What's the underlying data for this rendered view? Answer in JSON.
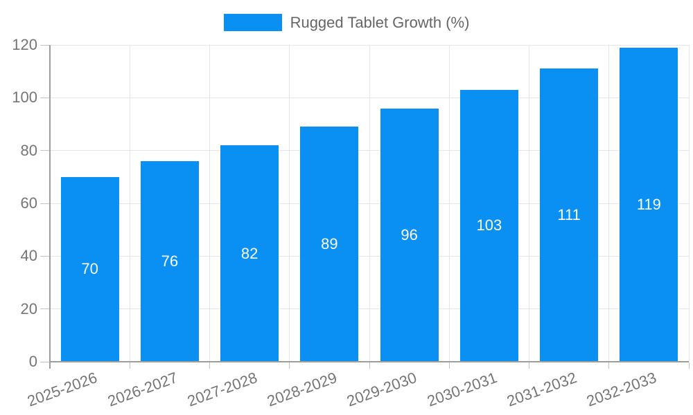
{
  "chart_data": {
    "type": "bar",
    "title": "",
    "legend": {
      "label": "Rugged Tablet Growth (%)",
      "position": "top"
    },
    "categories": [
      "2025-2026",
      "2026-2027",
      "2027-2028",
      "2028-2029",
      "2029-2030",
      "2030-2031",
      "2031-2032",
      "2032-2033"
    ],
    "series": [
      {
        "name": "Rugged Tablet Growth (%)",
        "values": [
          70,
          76,
          82,
          89,
          96,
          103,
          111,
          119
        ]
      }
    ],
    "values": [
      70,
      76,
      82,
      89,
      96,
      103,
      111,
      119
    ],
    "xlabel": "",
    "ylabel": "",
    "ylim": [
      0,
      120
    ],
    "yticks": [
      0,
      20,
      40,
      60,
      80,
      100,
      120
    ],
    "grid": "both",
    "x_label_rotation_deg": -20,
    "colors": {
      "bar": "#0a90f2",
      "value_label": "#ffffff",
      "axis_text": "#757575",
      "legend_text": "#666666",
      "gridline": "#e6e6e6",
      "axis_line": "#9e9e9e"
    }
  }
}
